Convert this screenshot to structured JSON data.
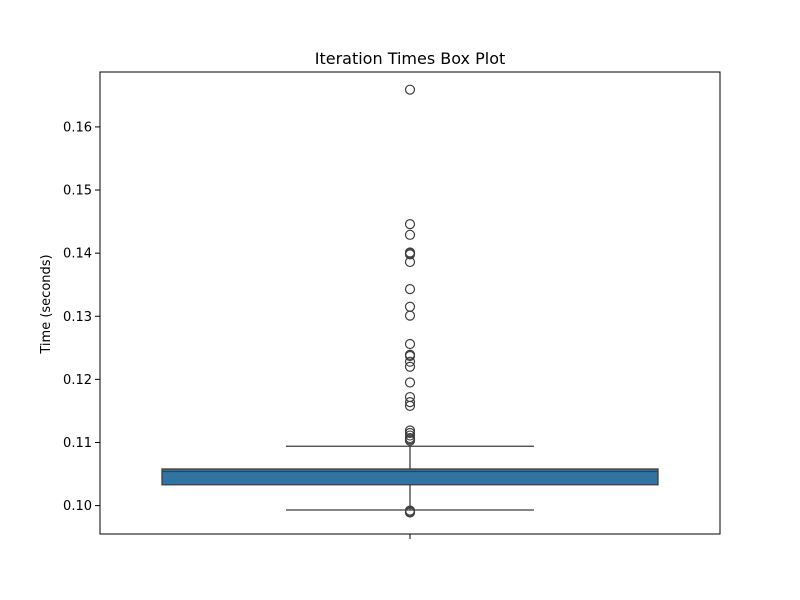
{
  "chart_data": {
    "type": "box",
    "title": "Iteration Times Box Plot",
    "xlabel": "",
    "ylabel": "Time (seconds)",
    "ylim": [
      0.0955,
      0.1687
    ],
    "yticks": [
      0.1,
      0.11,
      0.12,
      0.13,
      0.14,
      0.15,
      0.16
    ],
    "ytick_labels": [
      "0.10",
      "0.11",
      "0.12",
      "0.13",
      "0.14",
      "0.15",
      "0.16"
    ],
    "grid": false,
    "box": {
      "whisker_low": 0.0993,
      "q1": 0.1033,
      "median": 0.1054,
      "q3": 0.1058,
      "whisker_high": 0.1094,
      "color": "#3274a1"
    },
    "outliers": [
      0.1659,
      0.1446,
      0.1429,
      0.1401,
      0.14,
      0.1398,
      0.1386,
      0.1343,
      0.1315,
      0.1301,
      0.1256,
      0.1239,
      0.1237,
      0.1228,
      0.122,
      0.1195,
      0.1172,
      0.1164,
      0.1158,
      0.1119,
      0.1115,
      0.1111,
      0.1107,
      0.1105,
      0.1103,
      0.0992,
      0.099,
      0.0989
    ]
  }
}
